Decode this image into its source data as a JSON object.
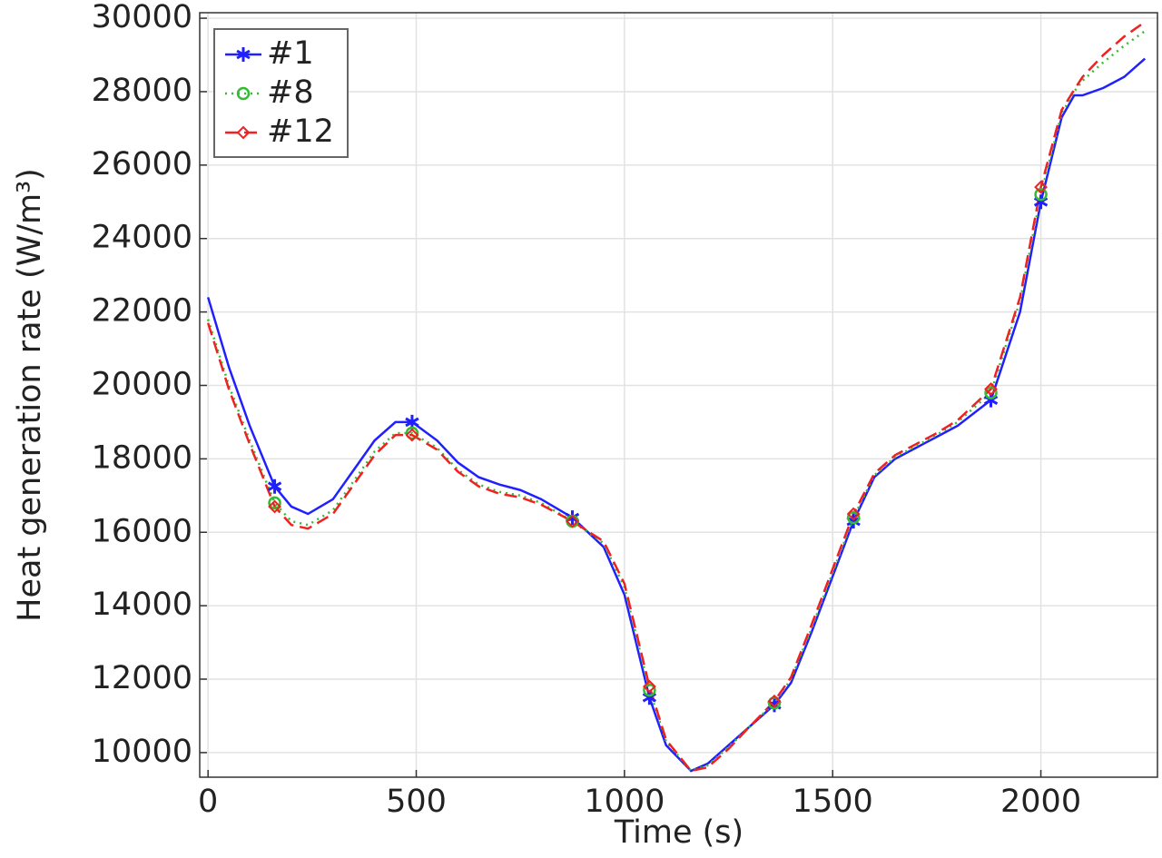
{
  "chart_data": {
    "type": "line",
    "x_label": "Time (s)",
    "y_label": "Heat generation rate (W/m³)",
    "x": [
      0,
      50,
      100,
      160,
      200,
      240,
      300,
      350,
      400,
      450,
      490,
      550,
      600,
      650,
      700,
      750,
      800,
      875,
      950,
      1000,
      1060,
      1100,
      1160,
      1200,
      1250,
      1300,
      1360,
      1400,
      1450,
      1500,
      1550,
      1600,
      1650,
      1700,
      1750,
      1800,
      1880,
      1950,
      2000,
      2050,
      2080,
      2100,
      2150,
      2200,
      2250
    ],
    "series": [
      {
        "name": "#1",
        "color": "#2020ff",
        "line_style": "solid",
        "marker": "asterisk",
        "marker_indices": [
          3,
          10,
          17,
          20,
          26,
          30,
          36,
          38
        ],
        "values": [
          22400,
          20500,
          18900,
          17250,
          16700,
          16500,
          16900,
          17700,
          18500,
          19000,
          19000,
          18500,
          17900,
          17500,
          17300,
          17150,
          16900,
          16400,
          15600,
          14300,
          11500,
          10200,
          9500,
          9700,
          10200,
          10700,
          11300,
          11900,
          13300,
          14800,
          16300,
          17500,
          18000,
          18300,
          18600,
          18900,
          19600,
          22000,
          25000,
          27300,
          27900,
          27900,
          28100,
          28400,
          28900
        ]
      },
      {
        "name": "#8",
        "color": "#33bb33",
        "line_style": "dotted",
        "marker": "circle",
        "marker_indices": [
          3,
          10,
          17,
          20,
          26,
          30,
          36,
          38
        ],
        "values": [
          21800,
          20000,
          18500,
          16800,
          16300,
          16200,
          16600,
          17400,
          18200,
          18700,
          18700,
          18300,
          17700,
          17300,
          17100,
          17000,
          16800,
          16300,
          15700,
          14500,
          11700,
          10300,
          9500,
          9650,
          10150,
          10700,
          11350,
          12000,
          13400,
          14900,
          16400,
          17550,
          18050,
          18350,
          18650,
          19000,
          19800,
          22300,
          25200,
          27400,
          28000,
          28300,
          28800,
          29250,
          29650
        ]
      },
      {
        "name": "#12",
        "color": "#ee2222",
        "line_style": "dashed",
        "marker": "diamond",
        "marker_indices": [
          3,
          10,
          17,
          20,
          26,
          30,
          36,
          38
        ],
        "values": [
          21700,
          19900,
          18400,
          16700,
          16200,
          16100,
          16500,
          17300,
          18100,
          18650,
          18650,
          18250,
          17650,
          17250,
          17050,
          16950,
          16750,
          16300,
          15750,
          14600,
          11800,
          10350,
          9500,
          9600,
          10100,
          10700,
          11400,
          12050,
          13500,
          15000,
          16500,
          17600,
          18100,
          18400,
          18700,
          19050,
          19900,
          22400,
          25400,
          27500,
          28050,
          28400,
          29000,
          29500,
          29900
        ]
      }
    ],
    "xlim": [
      -20,
      2280
    ],
    "ylim": [
      9330,
      30150
    ],
    "xticks": [
      0,
      500,
      1000,
      1500,
      2000
    ],
    "yticks": [
      10000,
      12000,
      14000,
      16000,
      18000,
      20000,
      22000,
      24000,
      26000,
      28000,
      30000
    ],
    "grid": true,
    "legend": "upper left"
  }
}
